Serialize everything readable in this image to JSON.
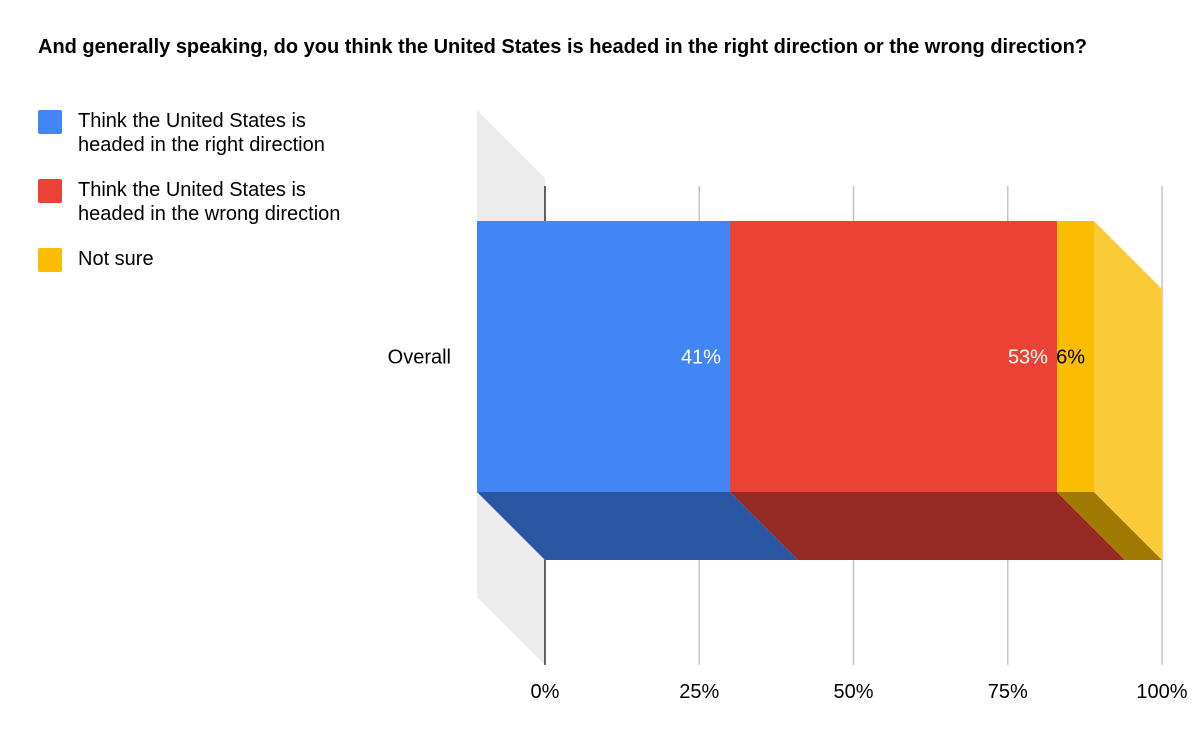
{
  "chart_data": {
    "type": "bar",
    "orientation": "horizontal",
    "stacked": true,
    "style_3d": true,
    "title": "And generally speaking, do you think the United States is headed in the right direction or the wrong direction?",
    "categories": [
      "Overall"
    ],
    "series": [
      {
        "name": "Think the United States is headed in the right direction",
        "values": [
          41
        ],
        "label": "41%",
        "color": "#4285f4",
        "shade": "#2a56a4",
        "label_color": "#ffffff"
      },
      {
        "name": "Think the United States is headed in the wrong direction",
        "values": [
          53
        ],
        "label": "53%",
        "color": "#ea4335",
        "shade": "#962a25",
        "label_color": "#ffffff"
      },
      {
        "name": "Not sure",
        "values": [
          6
        ],
        "label": "6%",
        "color": "#fbbc04",
        "shade": "#a17a02",
        "label_color": "#000000"
      }
    ],
    "xlim": [
      0,
      100
    ],
    "x_ticks": [
      {
        "value": 0,
        "label": "0%"
      },
      {
        "value": 25,
        "label": "25%"
      },
      {
        "value": 50,
        "label": "50%"
      },
      {
        "value": 75,
        "label": "75%"
      },
      {
        "value": 100,
        "label": "100%"
      }
    ],
    "grid": true,
    "legend_position": "left",
    "side_face_color": "#fbca38",
    "wall_color": "#ececec"
  }
}
